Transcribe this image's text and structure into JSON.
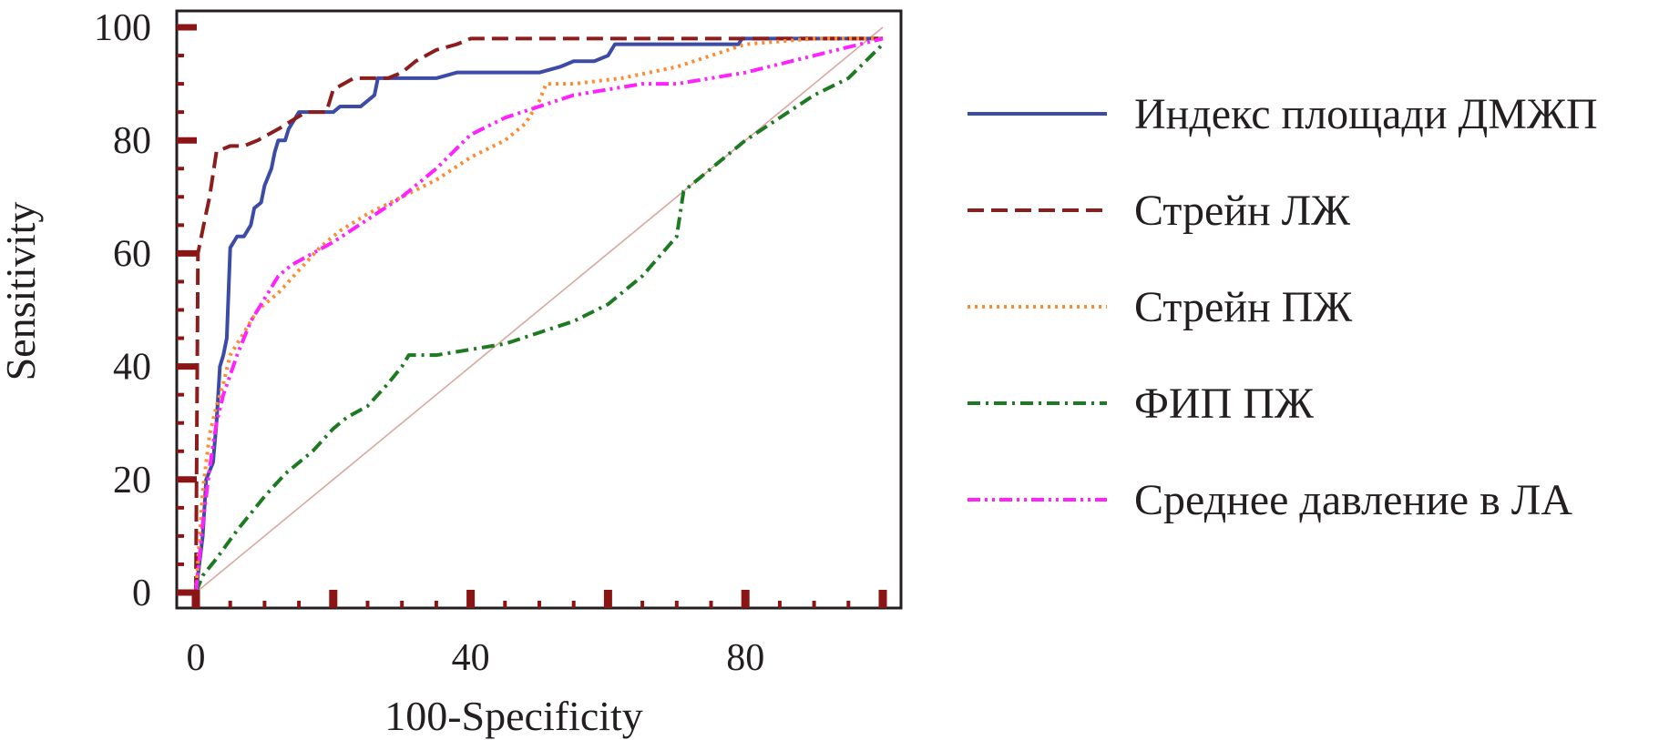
{
  "chart_data": {
    "type": "line",
    "title": "",
    "xlabel": "100-Specificity",
    "ylabel": "Sensitivity",
    "xlim": [
      0,
      100
    ],
    "ylim": [
      0,
      100
    ],
    "x_ticks": [
      0,
      40,
      80
    ],
    "y_ticks": [
      0,
      20,
      40,
      60,
      80,
      100
    ],
    "grid": false,
    "legend_position": "right",
    "reference_line": {
      "name": "chance",
      "color": "#d8a8a0",
      "points": [
        [
          0,
          0
        ],
        [
          100,
          100
        ]
      ]
    },
    "series": [
      {
        "name": "Индекс площади ДМЖП",
        "color": "#3b4ba6",
        "dash": "solid",
        "points": [
          [
            0,
            0
          ],
          [
            1,
            10
          ],
          [
            1.5,
            20
          ],
          [
            2.5,
            23
          ],
          [
            3,
            30
          ],
          [
            3.5,
            40
          ],
          [
            4,
            42
          ],
          [
            4.5,
            45
          ],
          [
            5,
            61
          ],
          [
            6,
            63
          ],
          [
            7,
            63
          ],
          [
            7.5,
            64
          ],
          [
            8,
            65
          ],
          [
            8.5,
            68
          ],
          [
            9.5,
            69
          ],
          [
            10,
            72
          ],
          [
            11,
            75
          ],
          [
            11.5,
            78
          ],
          [
            12,
            80
          ],
          [
            13,
            80
          ],
          [
            13.5,
            82
          ],
          [
            14.5,
            84
          ],
          [
            15,
            85
          ],
          [
            17,
            85
          ],
          [
            20,
            85
          ],
          [
            21,
            86
          ],
          [
            24,
            86
          ],
          [
            26,
            88
          ],
          [
            26.5,
            91
          ],
          [
            30,
            91
          ],
          [
            35,
            91
          ],
          [
            38,
            92
          ],
          [
            50,
            92
          ],
          [
            53,
            93
          ],
          [
            55,
            94
          ],
          [
            58,
            94
          ],
          [
            60,
            95
          ],
          [
            61,
            97
          ],
          [
            70,
            97
          ],
          [
            79,
            97
          ],
          [
            79.5,
            98
          ],
          [
            100,
            98
          ]
        ]
      },
      {
        "name": "Стрейн ЛЖ",
        "color": "#8b1d1d",
        "dash": "dashed",
        "points": [
          [
            0,
            0
          ],
          [
            0.3,
            60
          ],
          [
            0.8,
            63
          ],
          [
            1.3,
            66
          ],
          [
            2,
            70
          ],
          [
            3,
            78
          ],
          [
            5,
            79
          ],
          [
            7,
            79
          ],
          [
            9,
            80
          ],
          [
            12,
            82
          ],
          [
            16,
            85
          ],
          [
            19,
            85
          ],
          [
            20,
            89
          ],
          [
            23,
            91
          ],
          [
            28,
            91
          ],
          [
            30,
            92
          ],
          [
            32,
            94
          ],
          [
            35,
            96
          ],
          [
            38,
            97
          ],
          [
            40,
            98
          ],
          [
            45,
            98
          ],
          [
            100,
            98
          ]
        ]
      },
      {
        "name": "Стрейн ПЖ",
        "color": "#ff8a30",
        "dash": "dotted",
        "points": [
          [
            0,
            0
          ],
          [
            1,
            18
          ],
          [
            2,
            28
          ],
          [
            3,
            33
          ],
          [
            4,
            37
          ],
          [
            5,
            42
          ],
          [
            7,
            46
          ],
          [
            9,
            50
          ],
          [
            12,
            53
          ],
          [
            15,
            57
          ],
          [
            18,
            61
          ],
          [
            21,
            64
          ],
          [
            25,
            67
          ],
          [
            30,
            70
          ],
          [
            35,
            73
          ],
          [
            40,
            77
          ],
          [
            45,
            80
          ],
          [
            48,
            83
          ],
          [
            50,
            87
          ],
          [
            51,
            90
          ],
          [
            55,
            90
          ],
          [
            62,
            91
          ],
          [
            66,
            92
          ],
          [
            70,
            93
          ],
          [
            75,
            95
          ],
          [
            80,
            97
          ],
          [
            90,
            98
          ],
          [
            100,
            98
          ]
        ]
      },
      {
        "name": "ФИП ПЖ",
        "color": "#1e7a22",
        "dash": "dashdot",
        "points": [
          [
            0,
            0
          ],
          [
            1,
            3
          ],
          [
            3,
            6
          ],
          [
            6,
            11
          ],
          [
            10,
            17
          ],
          [
            13,
            21
          ],
          [
            17,
            25
          ],
          [
            20,
            29
          ],
          [
            22,
            31
          ],
          [
            25,
            33
          ],
          [
            28,
            37
          ],
          [
            30,
            40
          ],
          [
            31,
            42
          ],
          [
            35,
            42
          ],
          [
            40,
            43
          ],
          [
            45,
            44
          ],
          [
            50,
            46
          ],
          [
            55,
            48
          ],
          [
            60,
            51
          ],
          [
            65,
            56
          ],
          [
            70,
            63
          ],
          [
            71,
            71
          ],
          [
            75,
            75
          ],
          [
            80,
            80
          ],
          [
            85,
            84
          ],
          [
            90,
            88
          ],
          [
            95,
            91
          ],
          [
            100,
            97
          ]
        ]
      },
      {
        "name": "Среднее давление в ЛА",
        "color": "#ff22ff",
        "dash": "dashdotdot",
        "points": [
          [
            0,
            0
          ],
          [
            1,
            12
          ],
          [
            2,
            22
          ],
          [
            3,
            30
          ],
          [
            4,
            35
          ],
          [
            6,
            42
          ],
          [
            8,
            48
          ],
          [
            10,
            52
          ],
          [
            12,
            56
          ],
          [
            14,
            58
          ],
          [
            17,
            60
          ],
          [
            20,
            62
          ],
          [
            25,
            66
          ],
          [
            30,
            70
          ],
          [
            35,
            75
          ],
          [
            40,
            81
          ],
          [
            45,
            84
          ],
          [
            50,
            86
          ],
          [
            55,
            88
          ],
          [
            60,
            89
          ],
          [
            65,
            90
          ],
          [
            70,
            90
          ],
          [
            75,
            91
          ],
          [
            80,
            92
          ],
          [
            90,
            95
          ],
          [
            100,
            98
          ]
        ]
      }
    ]
  }
}
